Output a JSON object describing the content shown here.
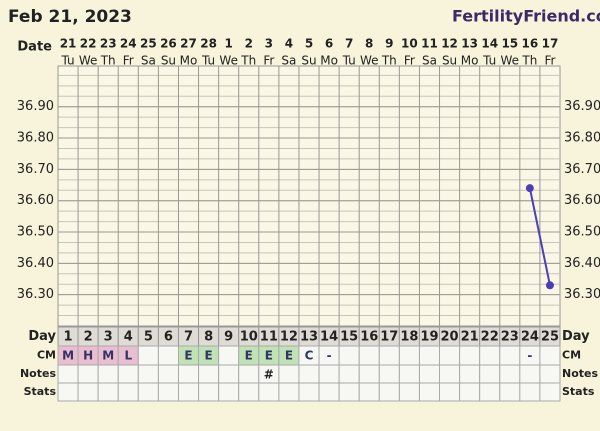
{
  "chart_data": {
    "type": "line",
    "title": "Feb 21, 2023",
    "brand": "FertilityFriend.com",
    "row_labels": {
      "date": "Date",
      "day": "Day",
      "cm": "CM",
      "notes": "Notes",
      "stats": "Stats"
    },
    "categories": [
      "21",
      "22",
      "23",
      "24",
      "25",
      "26",
      "27",
      "28",
      "1",
      "2",
      "3",
      "4",
      "5",
      "6",
      "7",
      "8",
      "9",
      "10",
      "11",
      "12",
      "13",
      "14",
      "15",
      "16",
      "17"
    ],
    "weekdays": [
      "Tu",
      "We",
      "Th",
      "Fr",
      "Sa",
      "Su",
      "Mo",
      "Tu",
      "We",
      "Th",
      "Fr",
      "Sa",
      "Su",
      "Mo",
      "Tu",
      "We",
      "Th",
      "Fr",
      "Sa",
      "Su",
      "Mo",
      "Tu",
      "We",
      "Th",
      "Fr"
    ],
    "cycle_days": [
      1,
      2,
      3,
      4,
      5,
      6,
      7,
      8,
      9,
      10,
      11,
      12,
      13,
      14,
      15,
      16,
      17,
      18,
      19,
      20,
      21,
      22,
      23,
      24,
      25
    ],
    "series": [
      {
        "name": "Temperature",
        "color": "#4b3fb5",
        "values": [
          null,
          null,
          null,
          null,
          null,
          null,
          null,
          null,
          null,
          null,
          null,
          null,
          null,
          null,
          null,
          null,
          null,
          null,
          null,
          null,
          null,
          null,
          null,
          36.64,
          36.33
        ]
      }
    ],
    "cm": [
      "M",
      "H",
      "M",
      "L",
      null,
      null,
      "E",
      "E",
      null,
      "E",
      "E",
      "E",
      "C",
      "-",
      null,
      null,
      null,
      null,
      null,
      null,
      null,
      null,
      null,
      "-",
      null
    ],
    "cm_fill": [
      "#e9bfd0",
      "#e9bfd0",
      "#e9bfd0",
      "#e9bfd0",
      null,
      null,
      "#bfe3b4",
      "#bfe3b4",
      null,
      "#bfe3b4",
      "#bfe3b4",
      "#bfe3b4",
      null,
      null,
      null,
      null,
      null,
      null,
      null,
      null,
      null,
      null,
      null,
      null,
      null
    ],
    "notes": [
      null,
      null,
      null,
      null,
      null,
      null,
      null,
      null,
      null,
      null,
      "#",
      null,
      null,
      null,
      null,
      null,
      null,
      null,
      null,
      null,
      null,
      null,
      null,
      null,
      null
    ],
    "ylim": [
      36.2,
      37.03
    ],
    "yticks": [
      {
        "value": 36.9,
        "label": "36.90"
      },
      {
        "value": 36.8,
        "label": "36.80"
      },
      {
        "value": 36.7,
        "label": "36.70"
      },
      {
        "value": 36.6,
        "label": "36.60"
      },
      {
        "value": 36.5,
        "label": "36.50"
      },
      {
        "value": 36.4,
        "label": "36.40"
      },
      {
        "value": 36.3,
        "label": "36.30"
      }
    ],
    "grid": true
  }
}
